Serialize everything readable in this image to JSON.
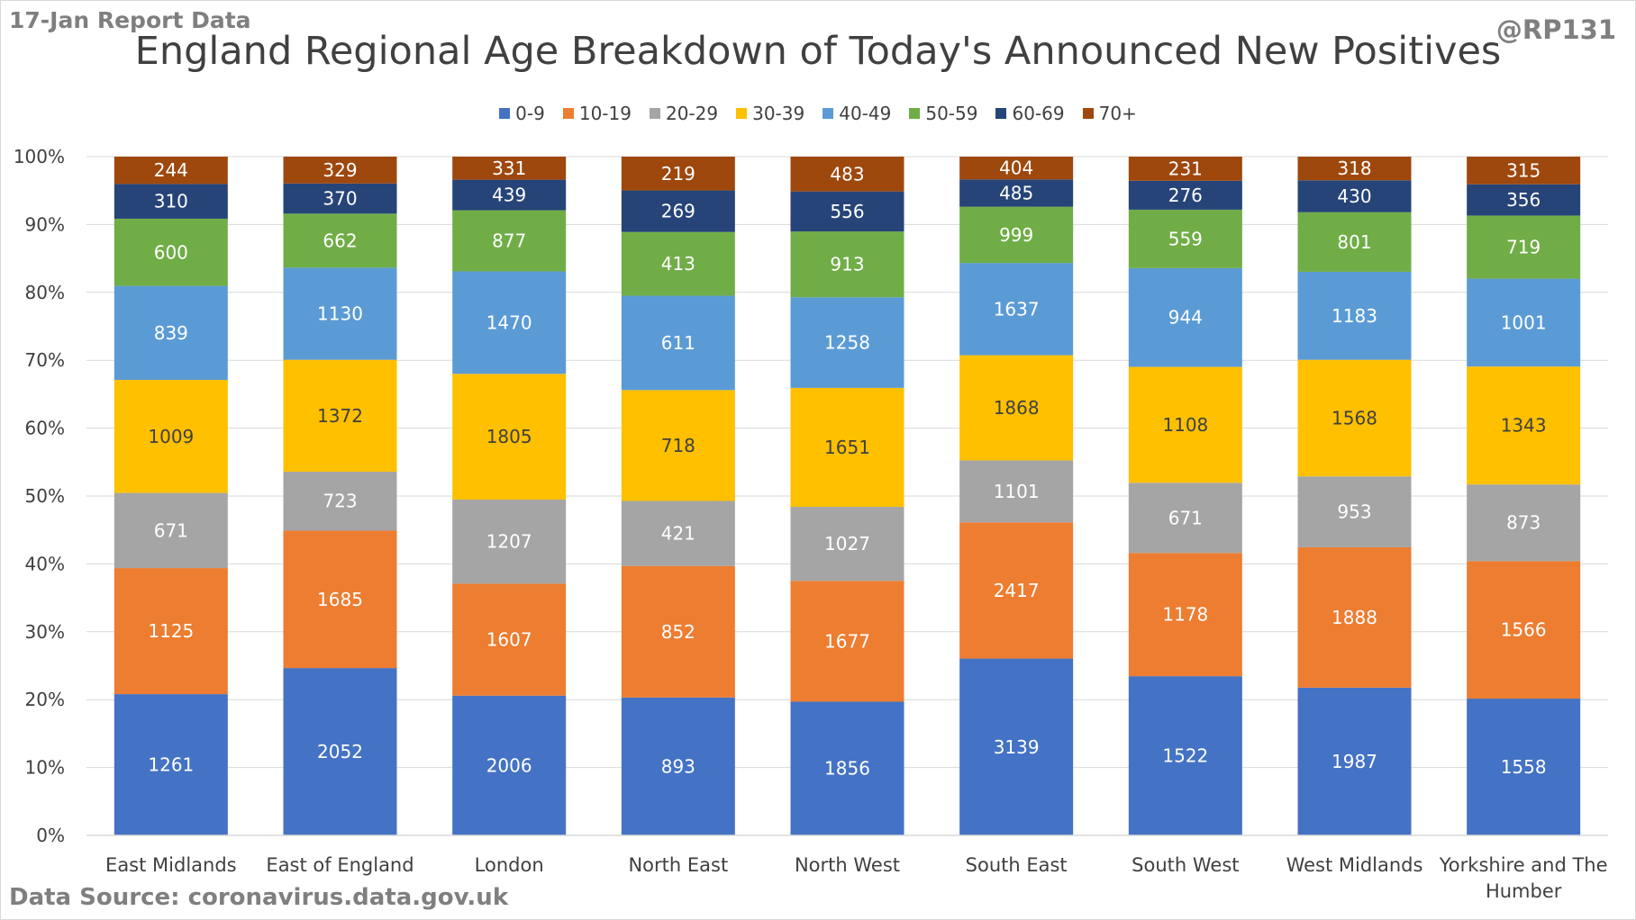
{
  "header": {
    "report_date": "17-Jan Report Data",
    "handle": "@RP131",
    "source": "Data Source: coronavirus.data.gov.uk"
  },
  "chart_data": {
    "type": "bar",
    "stacked": "percent",
    "title": "England Regional Age Breakdown of Today's Announced New Positives",
    "xlabel": "",
    "ylabel": "",
    "ylim": [
      0,
      100
    ],
    "yticks": [
      "0%",
      "10%",
      "20%",
      "30%",
      "40%",
      "50%",
      "60%",
      "70%",
      "80%",
      "90%",
      "100%"
    ],
    "grid": true,
    "legend_position": "top",
    "categories": [
      [
        "East Midlands"
      ],
      [
        "East of England"
      ],
      [
        "London"
      ],
      [
        "North East"
      ],
      [
        "North West"
      ],
      [
        "South East"
      ],
      [
        "South West"
      ],
      [
        "West Midlands"
      ],
      [
        "Yorkshire and The",
        "Humber"
      ]
    ],
    "series": [
      {
        "name": "0-9",
        "color": "#4472c4",
        "label_color": "#ffffff",
        "values": [
          1261,
          2052,
          2006,
          893,
          1856,
          3139,
          1522,
          1987,
          1558
        ]
      },
      {
        "name": "10-19",
        "color": "#ed7d31",
        "label_color": "#ffffff",
        "values": [
          1125,
          1685,
          1607,
          852,
          1677,
          2417,
          1178,
          1888,
          1566
        ]
      },
      {
        "name": "20-29",
        "color": "#a5a5a5",
        "label_color": "#ffffff",
        "values": [
          671,
          723,
          1207,
          421,
          1027,
          1101,
          671,
          953,
          873
        ]
      },
      {
        "name": "30-39",
        "color": "#ffc000",
        "label_color": "#404040",
        "values": [
          1009,
          1372,
          1805,
          718,
          1651,
          1868,
          1108,
          1568,
          1343
        ]
      },
      {
        "name": "40-49",
        "color": "#5b9bd5",
        "label_color": "#ffffff",
        "values": [
          839,
          1130,
          1470,
          611,
          1258,
          1637,
          944,
          1183,
          1001
        ]
      },
      {
        "name": "50-59",
        "color": "#70ad47",
        "label_color": "#ffffff",
        "values": [
          600,
          662,
          877,
          413,
          913,
          999,
          559,
          801,
          719
        ]
      },
      {
        "name": "60-69",
        "color": "#264478",
        "label_color": "#ffffff",
        "values": [
          310,
          370,
          439,
          269,
          556,
          485,
          276,
          430,
          356
        ]
      },
      {
        "name": "70+",
        "color": "#9e480e",
        "label_color": "#ffffff",
        "values": [
          244,
          329,
          331,
          219,
          483,
          404,
          231,
          318,
          315
        ]
      }
    ]
  }
}
